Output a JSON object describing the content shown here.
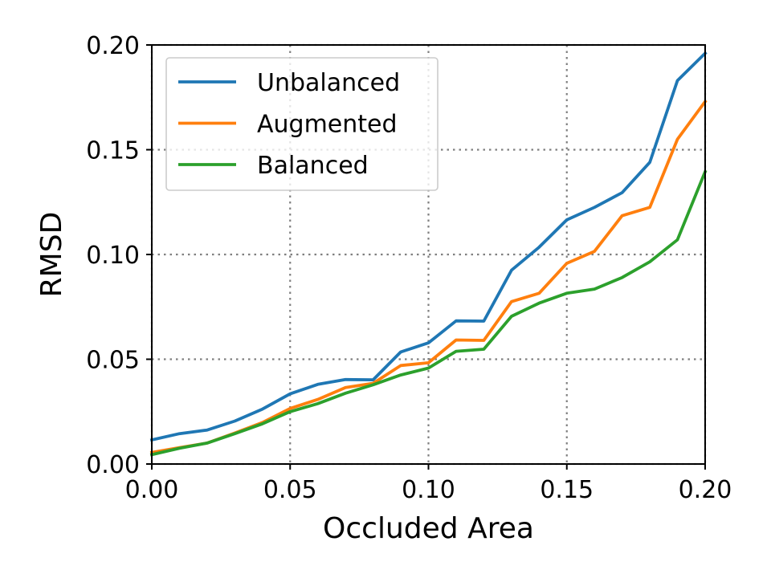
{
  "chart_data": {
    "type": "line",
    "title": "",
    "xlabel": "Occluded Area",
    "ylabel": "RMSD",
    "xlim": [
      0.0,
      0.2
    ],
    "ylim": [
      0.0,
      0.2
    ],
    "xticks": [
      "0.00",
      "0.05",
      "0.10",
      "0.15",
      "0.20"
    ],
    "yticks": [
      "0.00",
      "0.05",
      "0.10",
      "0.15",
      "0.20"
    ],
    "grid": true,
    "legend_position": "top-left",
    "x": [
      0.0,
      0.01,
      0.02,
      0.03,
      0.04,
      0.05,
      0.06,
      0.07,
      0.08,
      0.09,
      0.1,
      0.11,
      0.12,
      0.13,
      0.14,
      0.15,
      0.16,
      0.17,
      0.18,
      0.19,
      0.2
    ],
    "series": [
      {
        "name": "Unbalanced",
        "color": "#1f77b4",
        "values": [
          0.0115,
          0.0145,
          0.0162,
          0.0205,
          0.0262,
          0.0335,
          0.038,
          0.0403,
          0.0402,
          0.0535,
          0.0578,
          0.0683,
          0.0682,
          0.0925,
          0.1035,
          0.1165,
          0.1225,
          0.1295,
          0.144,
          0.183,
          0.196
        ]
      },
      {
        "name": "Augmented",
        "color": "#ff7f0e",
        "values": [
          0.0055,
          0.0078,
          0.01,
          0.0148,
          0.0198,
          0.0265,
          0.0308,
          0.0365,
          0.0385,
          0.047,
          0.0483,
          0.0592,
          0.059,
          0.0775,
          0.0815,
          0.0958,
          0.1015,
          0.1185,
          0.1225,
          0.155,
          0.173
        ]
      },
      {
        "name": "Balanced",
        "color": "#2ca02c",
        "values": [
          0.0045,
          0.0075,
          0.01,
          0.0145,
          0.0192,
          0.025,
          0.0288,
          0.0338,
          0.0378,
          0.0425,
          0.0458,
          0.0538,
          0.0548,
          0.0705,
          0.0768,
          0.0815,
          0.0835,
          0.089,
          0.0965,
          0.107,
          0.1395
        ]
      }
    ]
  }
}
